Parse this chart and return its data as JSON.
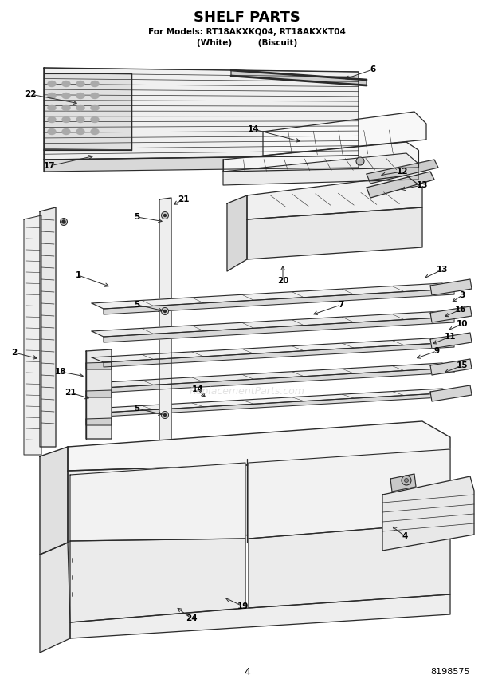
{
  "title_line1": "SHELF PARTS",
  "title_line2": "For Models: RT18AKXKQ04, RT18AKXKT04",
  "title_line3": "(White)         (Biscuit)",
  "page_number": "4",
  "part_number": "8198575",
  "watermark": "ReplacementParts.com",
  "bg_color": "#ffffff",
  "lc": "#2a2a2a",
  "fig_w": 6.2,
  "fig_h": 8.56,
  "dpi": 100
}
